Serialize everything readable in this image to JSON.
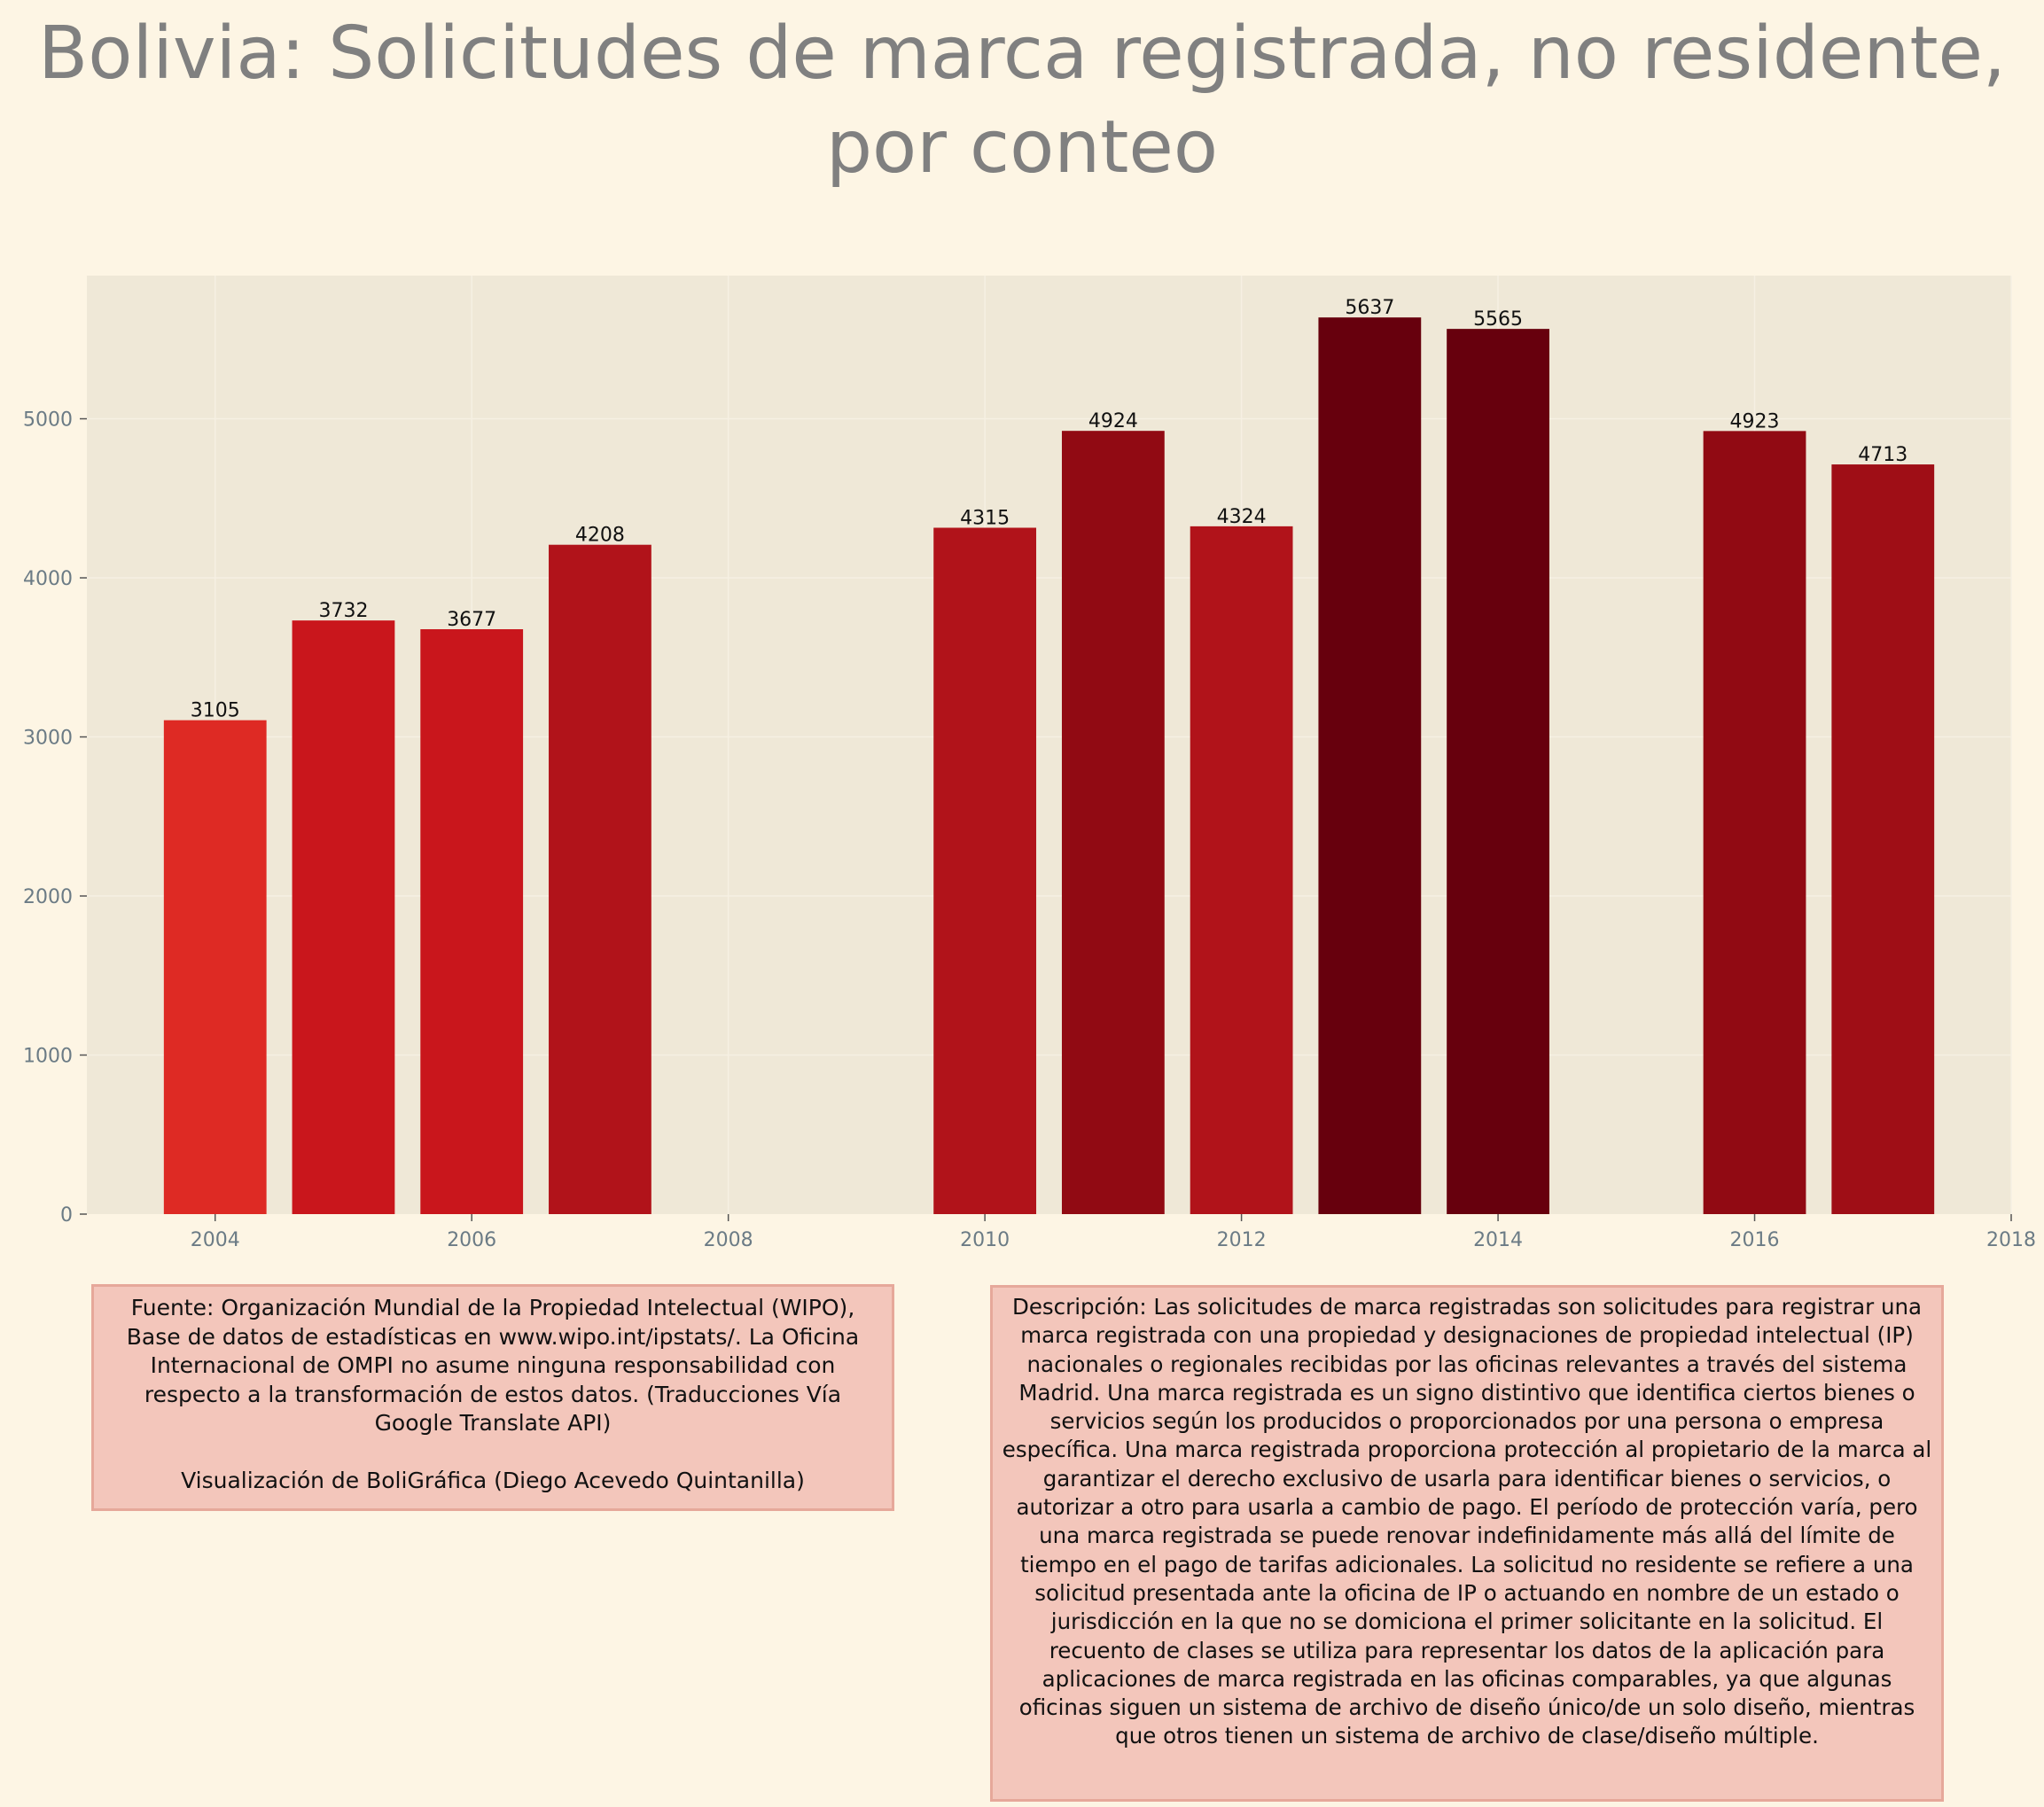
{
  "title": "Bolivia:  Solicitudes de marca registrada, no residente, por conteo",
  "chart_data": {
    "type": "bar",
    "title": "Bolivia:  Solicitudes de marca registrada, no residente, por conteo",
    "xlabel": "",
    "ylabel": "",
    "x": [
      2004,
      2005,
      2006,
      2007,
      2010,
      2011,
      2012,
      2013,
      2014,
      2016,
      2017
    ],
    "values": [
      3105,
      3732,
      3677,
      4208,
      4315,
      4924,
      4324,
      5637,
      5565,
      4923,
      4713
    ],
    "data_labels": [
      "3105",
      "3732",
      "3677",
      "4208",
      "4315",
      "4924",
      "4324",
      "5637",
      "5565",
      "4923",
      "4713"
    ],
    "bar_colors": [
      "#de2a24",
      "#c9161c",
      "#c9161c",
      "#b1131a",
      "#b1131a",
      "#910a13",
      "#b1131a",
      "#67000d",
      "#67000d",
      "#910a13",
      "#9f0e16"
    ],
    "xlim": [
      2003,
      2018
    ],
    "ylim": [
      0,
      5900
    ],
    "x_ticks": [
      2004,
      2006,
      2008,
      2010,
      2012,
      2014,
      2016,
      2018
    ],
    "x_tick_labels": [
      "2004",
      "2006",
      "2008",
      "2010",
      "2012",
      "2014",
      "2016",
      "2018"
    ],
    "y_ticks": [
      0,
      1000,
      2000,
      3000,
      4000,
      5000
    ],
    "y_tick_labels": [
      "0",
      "1000",
      "2000",
      "3000",
      "4000",
      "5000"
    ],
    "grid": true,
    "legend": "none",
    "colors": {
      "background": "#fdf5e4",
      "plot_background": "#efe8d7",
      "tick_text": "#6b7b85",
      "label_text": "#111111"
    }
  },
  "source": {
    "text": "Fuente: Organización Mundial de la Propiedad Intelectual (WIPO), Base de datos de estadísticas en www.wipo.int/ipstats/. La Oficina Internacional de OMPI no asume ninguna responsabilidad con respecto a la transformación de estos datos. (Traducciones Vía Google Translate API)",
    "credit": "Visualización de BoliGráfica (Diego Acevedo Quintanilla)"
  },
  "description": "Descripción: Las solicitudes de marca registradas son solicitudes para registrar una marca registrada con una propiedad y designaciones de propiedad intelectual (IP) nacionales o regionales recibidas por las oficinas relevantes a través del sistema Madrid. Una marca registrada es un signo distintivo que identifica ciertos bienes o servicios según los producidos o proporcionados por una persona o empresa específica. Una marca registrada proporciona protección al propietario de la marca al garantizar el derecho exclusivo de usarla para identificar bienes o servicios, o autorizar a otro para usarla a cambio de pago. El período de protección varía, pero una marca registrada se puede renovar indefinidamente más allá del límite de tiempo en el pago de tarifas adicionales. La solicitud no residente se refiere a una solicitud presentada ante la oficina de IP o actuando en nombre de un estado o jurisdicción en la que no se domiciona el primer solicitante en la solicitud. El recuento de clases se utiliza para representar los datos de la aplicación para aplicaciones de marca registrada en las oficinas comparables, ya que algunas oficinas siguen un sistema de archivo de diseño único/de un solo diseño, mientras que otros tienen un sistema de archivo de clase/diseño múltiple."
}
